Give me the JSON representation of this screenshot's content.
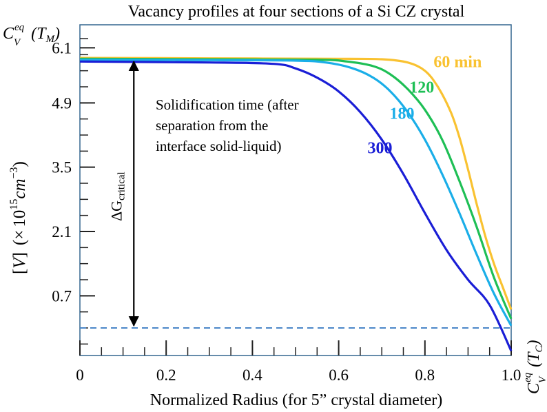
{
  "chart_data": {
    "type": "line",
    "title": "Vacancy profiles at four sections of a Si CZ crystal",
    "xlabel": "Normalized Radius (for 5” crystal diameter)",
    "ylabel": {
      "bracket_open": "[",
      "var": "V",
      "bracket_close": "]",
      "times": "(×",
      "base": "10",
      "exp": "15",
      "unit": "cm",
      "unit_exp": "−3",
      "close": ")"
    },
    "xlim": [
      0,
      1.0
    ],
    "ylim": [
      -0.6,
      6.6
    ],
    "x_ticks": [
      {
        "value": 0,
        "label": "0"
      },
      {
        "value": 0.2,
        "label": "0.2"
      },
      {
        "value": 0.4,
        "label": "0.4"
      },
      {
        "value": 0.6,
        "label": "0.6"
      },
      {
        "value": 0.8,
        "label": "0.8"
      },
      {
        "value": 1.0,
        "label": "1.0"
      }
    ],
    "x_minor_step": 0.05,
    "y_ticks": [
      {
        "value": 0.7,
        "label": "0.7"
      },
      {
        "value": 2.1,
        "label": "2.1"
      },
      {
        "value": 3.5,
        "label": "3.5"
      },
      {
        "value": 4.9,
        "label": "4.9"
      },
      {
        "value": 6.1,
        "label": "6.1"
      }
    ],
    "y_minor_step": 0.35,
    "y_minor_start": -0.35,
    "grid": false,
    "reference_line": {
      "y": 0.0,
      "style": "dashed",
      "color": "#4a86c8"
    },
    "ceq_top": {
      "base": "C",
      "sub": "V",
      "sup": "eq",
      "arg": "(T",
      "arg_sub": "M",
      "arg_close": ")"
    },
    "ceq_bottom": {
      "base": "C",
      "sub": "V",
      "sup": "eq",
      "arg": "(T",
      "arg_sub": "C",
      "arg_close": ")"
    },
    "series": [
      {
        "name": "60 min",
        "color": "#f9c231",
        "x": [
          0,
          0.3,
          0.6,
          0.7,
          0.76,
          0.8,
          0.83,
          0.86,
          0.88,
          0.9,
          0.92,
          0.94,
          0.96,
          0.98,
          1.0
        ],
        "y": [
          5.88,
          5.87,
          5.86,
          5.85,
          5.78,
          5.6,
          5.25,
          4.7,
          4.15,
          3.45,
          2.7,
          2.0,
          1.4,
          0.9,
          0.4
        ]
      },
      {
        "name": "120",
        "color": "#1ebf55",
        "x": [
          0,
          0.3,
          0.55,
          0.62,
          0.68,
          0.72,
          0.76,
          0.8,
          0.84,
          0.88,
          0.92,
          0.96,
          1.0
        ],
        "y": [
          5.86,
          5.85,
          5.84,
          5.8,
          5.7,
          5.52,
          5.2,
          4.75,
          4.1,
          3.2,
          2.2,
          1.1,
          0.2
        ]
      },
      {
        "name": "180",
        "color": "#1aaee8",
        "x": [
          0,
          0.3,
          0.5,
          0.57,
          0.63,
          0.68,
          0.72,
          0.76,
          0.8,
          0.84,
          0.88,
          0.92,
          0.96,
          1.0
        ],
        "y": [
          5.84,
          5.83,
          5.82,
          5.78,
          5.66,
          5.45,
          5.15,
          4.7,
          4.1,
          3.35,
          2.5,
          1.6,
          0.75,
          0.05
        ]
      },
      {
        "name": "300",
        "color": "#1a1ed6",
        "x": [
          0,
          0.3,
          0.45,
          0.5,
          0.55,
          0.6,
          0.65,
          0.7,
          0.75,
          0.8,
          0.85,
          0.9,
          0.95,
          1.0
        ],
        "y": [
          5.8,
          5.78,
          5.75,
          5.65,
          5.45,
          5.15,
          4.7,
          4.1,
          3.35,
          2.5,
          1.7,
          1.05,
          0.5,
          -0.5
        ]
      }
    ],
    "series_labels": [
      {
        "text": "60 min",
        "x": 0.82,
        "y": 5.68,
        "color": "#f9c231"
      },
      {
        "text": "120",
        "x": 0.764,
        "y": 5.12,
        "color": "#1ebf55"
      },
      {
        "text": "180",
        "x": 0.718,
        "y": 4.55,
        "color": "#1aaee8"
      },
      {
        "text": "300",
        "x": 0.667,
        "y": 3.8,
        "color": "#1a1ed6"
      }
    ],
    "annotation": {
      "lines": [
        "Solidification time (after",
        "separation from the",
        "interface solid-liquid)"
      ]
    },
    "delta_g": {
      "symbol": "ΔG",
      "sub": "critical",
      "x": 0.125,
      "y_top": 5.8,
      "y_bottom": 0.05
    }
  }
}
